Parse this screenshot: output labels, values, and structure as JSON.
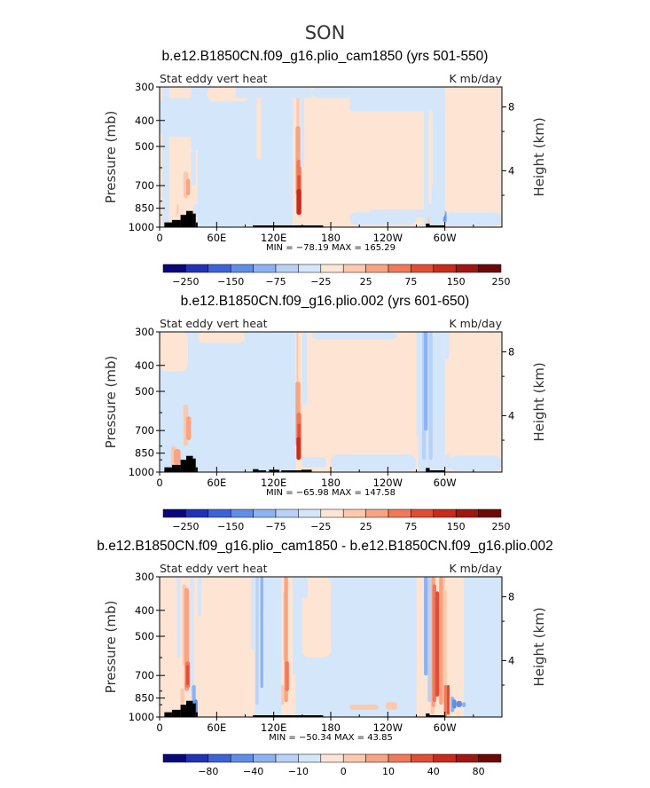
{
  "figure_title": "SON",
  "palette": {
    "levels_main": [
      "-250",
      "-150",
      "-75",
      "-25",
      "25",
      "75",
      "150",
      "250"
    ],
    "levels_diff": [
      "-80",
      "-40",
      "-10",
      "0",
      "10",
      "40",
      "80"
    ],
    "colors": [
      "#08087c",
      "#1f34b5",
      "#3d63d8",
      "#5f8ee8",
      "#8db2f2",
      "#b7d1f7",
      "#d5e6fb",
      "#fde5d4",
      "#fcc9ad",
      "#f8a483",
      "#f0795b",
      "#e24e35",
      "#c92a1c",
      "#a11610",
      "#6e0808"
    ],
    "neg_light": "#d3e6fa",
    "pos_light": "#fde4d3",
    "land": "#000000"
  },
  "chart_data": [
    {
      "type": "heatmap",
      "name": "panel-1",
      "title": "b.e12.B1850CN.f09_g16.plio_cam1850 (yrs 501-550)",
      "left_label": "Stat eddy vert heat",
      "right_label": "K mb/day",
      "ylabel": "Pressure (mb)",
      "y2label": "Height (km)",
      "xticks": [
        "0",
        "60E",
        "120E",
        "180",
        "120W",
        "60W"
      ],
      "yticks": [
        "300",
        "400",
        "500",
        "700",
        "850",
        "1000"
      ],
      "y2ticks": [
        "8",
        "4"
      ],
      "stats": "MIN = −78.19   MAX = 165.29",
      "min": -78.19,
      "max": 165.29,
      "colorbar_labels": [
        "−250",
        "−150",
        "−75",
        "−25",
        "25",
        "75",
        "150",
        "250"
      ]
    },
    {
      "type": "heatmap",
      "name": "panel-2",
      "title": "b.e12.B1850CN.f09_g16.plio.002 (yrs 601-650)",
      "left_label": "Stat eddy vert heat",
      "right_label": "K mb/day",
      "ylabel": "Pressure (mb)",
      "y2label": "Height (km)",
      "xticks": [
        "0",
        "60E",
        "120E",
        "180",
        "120W",
        "60W"
      ],
      "yticks": [
        "300",
        "400",
        "500",
        "700",
        "850",
        "1000"
      ],
      "y2ticks": [
        "8",
        "4"
      ],
      "stats": "MIN = −65.98   MAX = 147.58",
      "min": -65.98,
      "max": 147.58,
      "colorbar_labels": [
        "−250",
        "−150",
        "−75",
        "−25",
        "25",
        "75",
        "150",
        "250"
      ]
    },
    {
      "type": "heatmap",
      "name": "panel-3",
      "title": "b.e12.B1850CN.f09_g16.plio_cam1850 - b.e12.B1850CN.f09_g16.plio.002",
      "left_label": "Stat eddy vert heat",
      "right_label": "K mb/day",
      "ylabel": "Pressure (mb)",
      "y2label": "Height (km)",
      "xticks": [
        "0",
        "60E",
        "120E",
        "180",
        "120W",
        "60W"
      ],
      "yticks": [
        "300",
        "400",
        "500",
        "700",
        "850",
        "1000"
      ],
      "y2ticks": [
        "8",
        "4"
      ],
      "stats": "MIN = −50.34   MAX = 43.85",
      "min": -50.34,
      "max": 43.85,
      "colorbar_labels": [
        "−80",
        "−40",
        "−10",
        "0",
        "10",
        "40",
        "80"
      ]
    }
  ]
}
